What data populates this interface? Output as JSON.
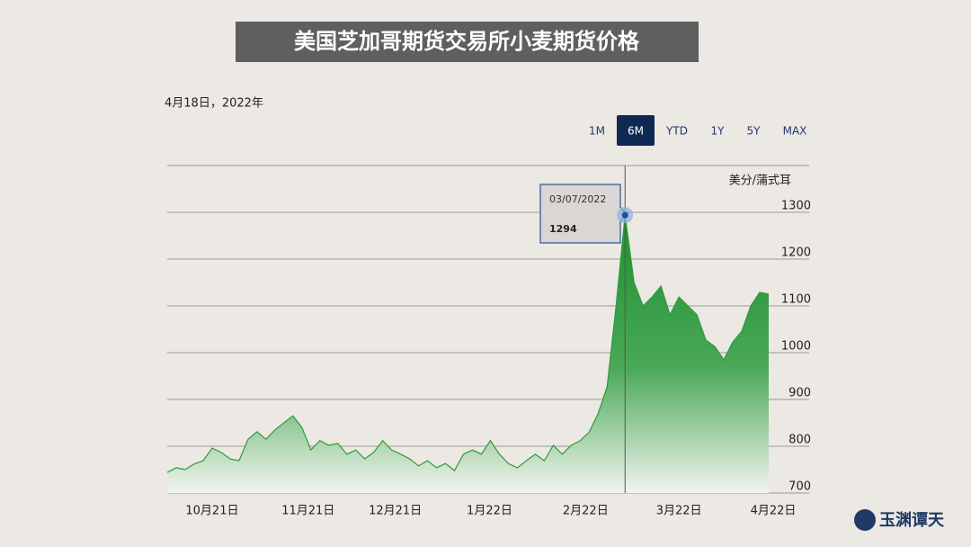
{
  "chart_data": {
    "type": "area",
    "title": "美国芝加哥期货交易所小麦期货价格",
    "subtitle": "4月18日，2022年",
    "y_axis_label": "美分/蒲式耳",
    "range_buttons": [
      "1M",
      "6M",
      "YTD",
      "1Y",
      "5Y",
      "MAX"
    ],
    "selected_range": "6M",
    "color": "#2e9a3c",
    "values": [
      744,
      754,
      750,
      762,
      769,
      796,
      787,
      773,
      769,
      815,
      831,
      815,
      835,
      850,
      865,
      840,
      792,
      812,
      802,
      806,
      783,
      792,
      773,
      787,
      812,
      792,
      783,
      773,
      758,
      769,
      754,
      763,
      748,
      783,
      792,
      783,
      812,
      783,
      763,
      754,
      769,
      783,
      769,
      802,
      783,
      802,
      812,
      830,
      870,
      927,
      1100,
      1294,
      1150,
      1100,
      1119,
      1142,
      1081,
      1119,
      1100,
      1081,
      1027,
      1013,
      985,
      1023,
      1046,
      1100,
      1129,
      1125
    ],
    "xlim": [
      0,
      67.5
    ],
    "xticks": [
      {
        "value": 5,
        "label": "10月21日"
      },
      {
        "value": 15.7,
        "label": "11月21日"
      },
      {
        "value": 25.4,
        "label": "12月21日"
      },
      {
        "value": 35.9,
        "label": "1月22日"
      },
      {
        "value": 46.6,
        "label": "2月22日"
      },
      {
        "value": 57,
        "label": "3月22日"
      },
      {
        "value": 67.5,
        "label": "4月22日"
      }
    ],
    "ylim": [
      700,
      1400
    ],
    "yticks": [
      700,
      800,
      900,
      1000,
      1100,
      1200,
      1300
    ],
    "grid": true,
    "tooltip": {
      "x": 51,
      "date": "03/07/2022",
      "value": 1294
    }
  },
  "logo": "玉渊谭天"
}
